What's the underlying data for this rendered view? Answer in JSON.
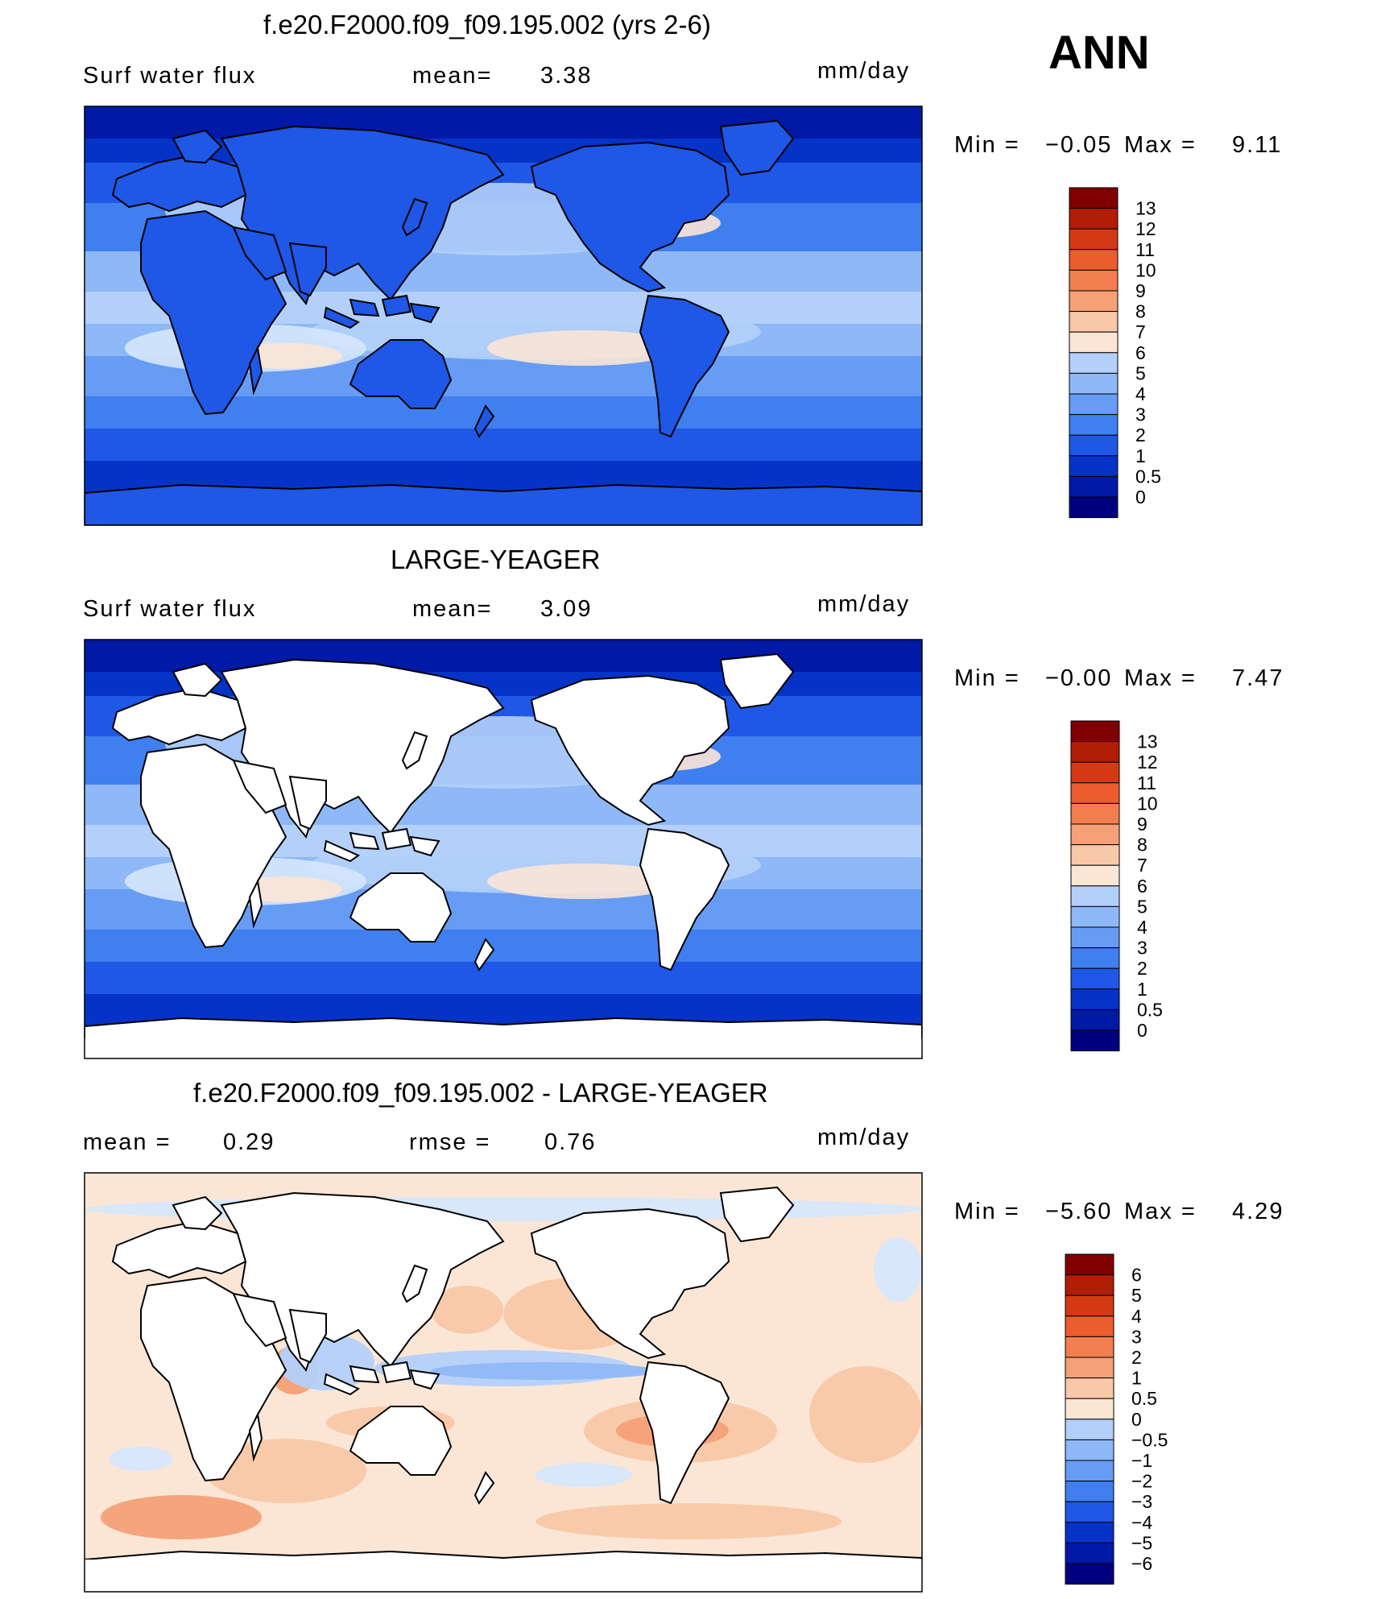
{
  "season": "ANN",
  "colors": {
    "abs_scale": [
      "#00007f",
      "#0019a6",
      "#0533c8",
      "#1f57e6",
      "#3f7ff0",
      "#669cf4",
      "#8eb8f7",
      "#b3d0fa",
      "#d6e7fc",
      "#fbe6d6",
      "#f9c8a8",
      "#f5a077",
      "#f27d4f",
      "#ec5c2e",
      "#d33a13",
      "#b01f05",
      "#800000"
    ],
    "diff_scale": [
      "#00007f",
      "#0019a6",
      "#0533c8",
      "#1f57e6",
      "#3f7ff0",
      "#669cf4",
      "#8eb8f7",
      "#b3d0fa",
      "#d6e7fc",
      "#fbe6d6",
      "#f9c8a8",
      "#f5a077",
      "#f27d4f",
      "#ec5c2e",
      "#d33a13",
      "#b01f05",
      "#800000"
    ]
  },
  "panels": [
    {
      "title": "f.e20.F2000.f09_f09.195.002 (yrs 2-6)",
      "left_text": "Surf  water  flux",
      "mean_label": "mean=",
      "mean_value": "3.38",
      "units": "mm/day",
      "min_label": "Min  =",
      "min_value": "−0.05",
      "max_label": "Max  =",
      "max_value": "9.11",
      "map": "model"
    },
    {
      "title": "LARGE-YEAGER",
      "left_text": "Surf  water  flux",
      "mean_label": "mean=",
      "mean_value": "3.09",
      "units": "mm/day",
      "min_label": "Min  =",
      "min_value": "−0.00",
      "max_label": "Max  =",
      "max_value": "7.47",
      "map": "obs"
    },
    {
      "title": "f.e20.F2000.f09_f09.195.002 - LARGE-YEAGER",
      "left_text": "mean  =",
      "mean_label": "rmse  =",
      "mean_value": "0.76",
      "left_value": "0.29",
      "units": "mm/day",
      "min_label": "Min  =",
      "min_value": "−5.60",
      "max_label": "Max  =",
      "max_value": "4.29",
      "map": "diff"
    }
  ],
  "legend_abs": [
    "13",
    "12",
    "11",
    "10",
    "9",
    "8",
    "7",
    "6",
    "5",
    "4",
    "3",
    "2",
    "1",
    "0.5",
    "0"
  ],
  "legend_diff": [
    "6",
    "5",
    "4",
    "3",
    "2",
    "1",
    "0.5",
    "0",
    "−0.5",
    "−1",
    "−2",
    "−3",
    "−4",
    "−5",
    "−6"
  ]
}
